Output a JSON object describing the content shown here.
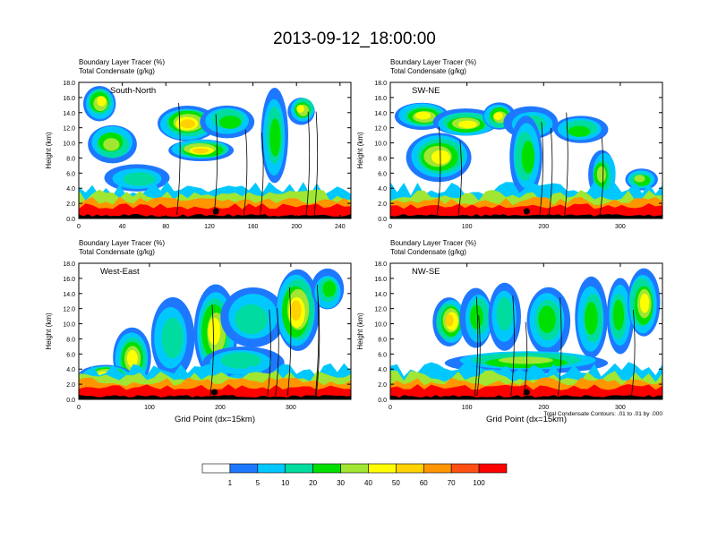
{
  "title": "2013-09-12_18:00:00",
  "colors": {
    "levels": [
      "#ffffff",
      "#1e78ff",
      "#00c8ff",
      "#00dca0",
      "#00e000",
      "#a0e632",
      "#ffff00",
      "#ffd200",
      "#ff9600",
      "#ff5014",
      "#ff0000"
    ]
  },
  "legend": {
    "tick_labels": [
      "1",
      "5",
      "10",
      "20",
      "30",
      "40",
      "50",
      "60",
      "70",
      "100"
    ]
  },
  "footnote": "Total Condensate Contours: .01 to .01 by .000",
  "chart_data": [
    {
      "type": "heatmap",
      "var_label_1": "Boundary Layer Tracer",
      "var_unit_1": "(%)",
      "var_label_2": "Total Condensate",
      "var_unit_2": "(g/kg)",
      "panel_label": "South-North",
      "ylabel": "Height (km)",
      "xlabel": "",
      "xlim": [
        0,
        250
      ],
      "ylim": [
        0,
        18
      ],
      "xticks": [
        "0",
        "40",
        "80",
        "120",
        "160",
        "200",
        "240"
      ],
      "yticks": [
        "0.0",
        "2.0",
        "4.0",
        "6.0",
        "8.0",
        "10.0",
        "12.0",
        "14.0",
        "16.0",
        "18.0"
      ],
      "marker_x": 126
    },
    {
      "type": "heatmap",
      "var_label_1": "Boundary Layer Tracer",
      "var_unit_1": "(%)",
      "var_label_2": "Total Condensate",
      "var_unit_2": "(g/kg)",
      "panel_label": "SW-NE",
      "ylabel": "Height (km)",
      "xlabel": "",
      "xlim": [
        0,
        355
      ],
      "ylim": [
        0,
        18
      ],
      "xticks": [
        "0",
        "100",
        "200",
        "300"
      ],
      "yticks": [
        "0.0",
        "2.0",
        "4.0",
        "6.0",
        "8.0",
        "10.0",
        "12.0",
        "14.0",
        "16.0",
        "18.0"
      ],
      "marker_x": 178
    },
    {
      "type": "heatmap",
      "var_label_1": "Boundary Layer Tracer",
      "var_unit_1": "(%)",
      "var_label_2": "Total Condensate",
      "var_unit_2": "(g/kg)",
      "panel_label": "West-East",
      "ylabel": "Height (km)",
      "xlabel": "Grid Point (dx=15km)",
      "xlim": [
        0,
        385
      ],
      "ylim": [
        0,
        18
      ],
      "xticks": [
        "0",
        "100",
        "200",
        "300"
      ],
      "yticks": [
        "0.0",
        "2.0",
        "4.0",
        "6.0",
        "8.0",
        "10.0",
        "12.0",
        "14.0",
        "16.0",
        "18.0"
      ],
      "marker_x": 192
    },
    {
      "type": "heatmap",
      "var_label_1": "Boundary Layer Tracer",
      "var_unit_1": "(%)",
      "var_label_2": "Total Condensate",
      "var_unit_2": "(g/kg)",
      "panel_label": "NW-SE",
      "ylabel": "Height (km)",
      "xlabel": "Grid Point (dx=15km)",
      "xlim": [
        0,
        355
      ],
      "ylim": [
        0,
        18
      ],
      "xticks": [
        "0",
        "100",
        "200",
        "300"
      ],
      "yticks": [
        "0.0",
        "2.0",
        "4.0",
        "6.0",
        "8.0",
        "10.0",
        "12.0",
        "14.0",
        "16.0",
        "18.0"
      ],
      "marker_x": 178
    }
  ]
}
